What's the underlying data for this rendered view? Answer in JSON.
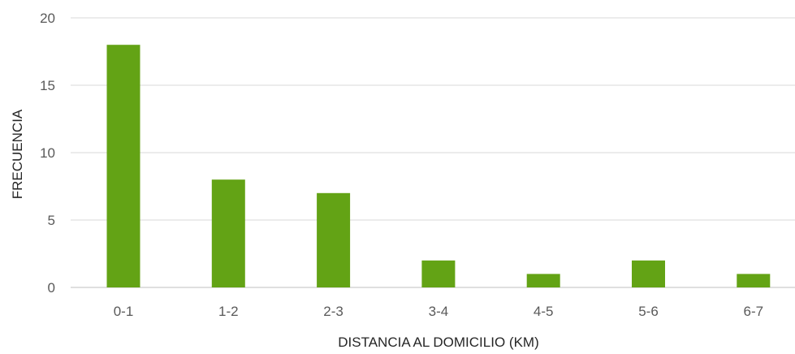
{
  "chart_data": {
    "type": "bar",
    "categories": [
      "0-1",
      "1-2",
      "2-3",
      "3-4",
      "4-5",
      "5-6",
      "6-7"
    ],
    "values": [
      18,
      8,
      7,
      2,
      1,
      2,
      1
    ],
    "xlabel": "DISTANCIA AL DOMICILIO (KM)",
    "ylabel": "FRECUENCIA",
    "ylim": [
      0,
      20
    ],
    "yticks": [
      0,
      5,
      10,
      15,
      20
    ],
    "bar_color": "#63a315",
    "grid": true,
    "legend": "none"
  }
}
